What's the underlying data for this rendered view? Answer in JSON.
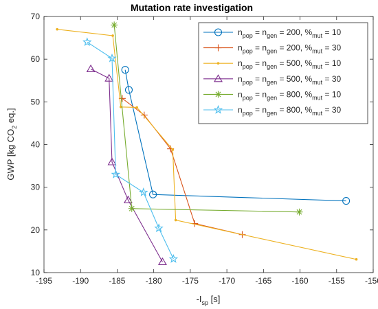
{
  "chart_data": {
    "type": "line",
    "title": "Mutation rate investigation",
    "xlabel": {
      "main": "-I",
      "sub": "sp",
      "tail": " [s]"
    },
    "ylabel": {
      "main": "GWP [kg CO",
      "sub": "2",
      "tail": " eq.]"
    },
    "xlim": [
      -195,
      -150
    ],
    "ylim": [
      10,
      70
    ],
    "xticks": [
      "-195",
      "-190",
      "-185",
      "-180",
      "-175",
      "-170",
      "-165",
      "-160",
      "-155",
      "-150"
    ],
    "yticks": [
      "10",
      "20",
      "30",
      "40",
      "50",
      "60",
      "70"
    ],
    "grid": false,
    "legend_position": "top-right",
    "series": [
      {
        "name": "n_pop = n_gen = 200, %_mut = 10",
        "legend": {
          "npop": "200",
          "mut": "10"
        },
        "color": "#0072BD",
        "marker": "circle",
        "x": [
          -183.9,
          -183.4,
          -180.1,
          -153.7
        ],
        "y": [
          57.5,
          52.8,
          28.3,
          26.8
        ]
      },
      {
        "name": "n_pop = n_gen = 200, %_mut = 30",
        "legend": {
          "npop": "200",
          "mut": "30"
        },
        "color": "#D95319",
        "marker": "plus",
        "x": [
          -184.3,
          -181.3,
          -177.7,
          -174.4,
          -167.9
        ],
        "y": [
          50.8,
          46.9,
          39.0,
          21.5,
          18.9
        ]
      },
      {
        "name": "n_pop = n_gen = 500, %_mut = 10",
        "legend": {
          "npop": "500",
          "mut": "10"
        },
        "color": "#EDB120",
        "marker": "dot",
        "x": [
          -193.2,
          -185.6,
          -184.5,
          -182.3,
          -177.4,
          -177.0,
          -152.3
        ],
        "y": [
          67.0,
          65.5,
          48.8,
          48.7,
          38.8,
          22.3,
          13.1
        ]
      },
      {
        "name": "n_pop = n_gen = 500, %_mut = 30",
        "legend": {
          "npop": "500",
          "mut": "30"
        },
        "color": "#7E2F8E",
        "marker": "triangle",
        "x": [
          -188.6,
          -186.1,
          -185.7,
          -183.5,
          -178.8
        ],
        "y": [
          57.7,
          55.5,
          35.9,
          27.0,
          12.5
        ]
      },
      {
        "name": "n_pop = n_gen = 800, %_mut = 10",
        "legend": {
          "npop": "800",
          "mut": "10"
        },
        "color": "#77AC30",
        "marker": "asterisk",
        "x": [
          -185.4,
          -183.0,
          -160.1
        ],
        "y": [
          68.0,
          25.0,
          24.2
        ]
      },
      {
        "name": "n_pop = n_gen = 800, %_mut = 30",
        "legend": {
          "npop": "800",
          "mut": "30"
        },
        "color": "#4DBEEE",
        "marker": "star",
        "x": [
          -189.1,
          -185.7,
          -185.2,
          -181.4,
          -179.3,
          -177.3
        ],
        "y": [
          64.0,
          60.2,
          33.0,
          28.8,
          20.4,
          13.2
        ]
      }
    ]
  }
}
